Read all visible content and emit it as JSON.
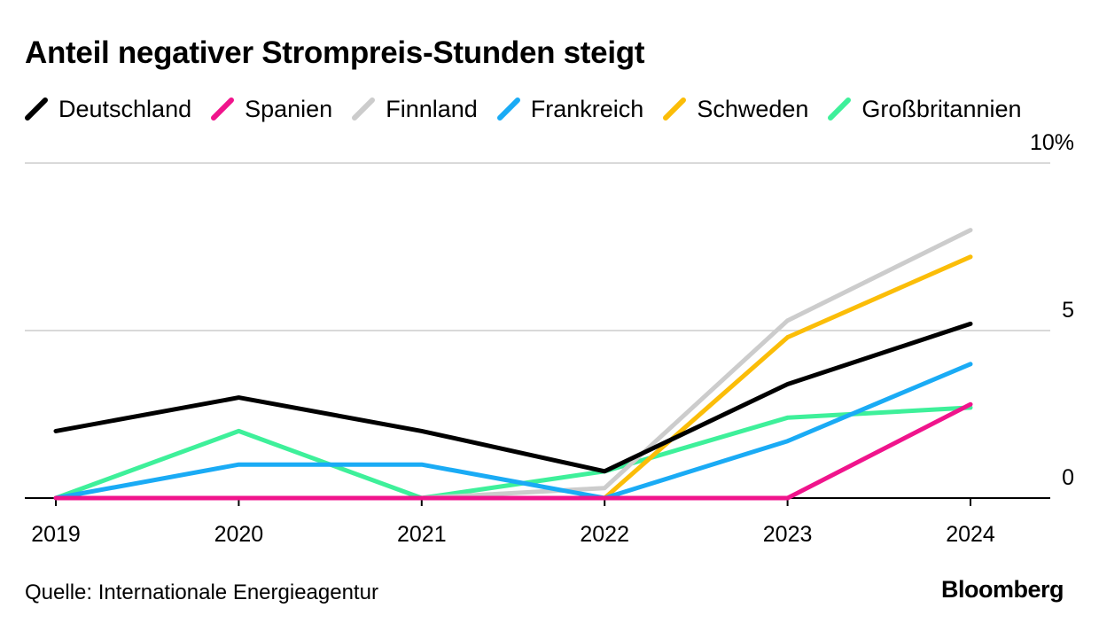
{
  "title": "Anteil negativer Strompreis-Stunden steigt",
  "source": "Quelle: Internationale Energieagentur",
  "brand": "Bloomberg",
  "chart_data": {
    "type": "line",
    "title": "Anteil negativer Strompreis-Stunden steigt",
    "xlabel": "",
    "ylabel": "",
    "x": [
      "2019",
      "2020",
      "2021",
      "2022",
      "2023",
      "2024"
    ],
    "ylim": [
      0,
      10
    ],
    "yticks": [
      {
        "value": 0,
        "label": "0"
      },
      {
        "value": 5,
        "label": "5"
      },
      {
        "value": 10,
        "label": "10%"
      }
    ],
    "grid": true,
    "legend_position": "top",
    "series": [
      {
        "name": "Deutschland",
        "color": "#000000",
        "values": [
          2.0,
          3.0,
          2.0,
          0.8,
          3.4,
          5.2
        ]
      },
      {
        "name": "Spanien",
        "color": "#f0148c",
        "values": [
          0,
          0,
          0,
          0,
          0,
          2.8
        ]
      },
      {
        "name": "Finnland",
        "color": "#cccccc",
        "values": [
          0,
          0,
          0,
          0.3,
          5.3,
          8.0
        ]
      },
      {
        "name": "Frankreich",
        "color": "#1aabf5",
        "values": [
          0,
          1.0,
          1.0,
          0,
          1.7,
          4.0
        ]
      },
      {
        "name": "Schweden",
        "color": "#fbbd08",
        "values": [
          0,
          0,
          0,
          0,
          4.8,
          7.2
        ]
      },
      {
        "name": "Großbritannien",
        "color": "#3ef09a",
        "values": [
          0,
          2.0,
          0,
          0.8,
          2.4,
          2.7
        ]
      }
    ]
  }
}
